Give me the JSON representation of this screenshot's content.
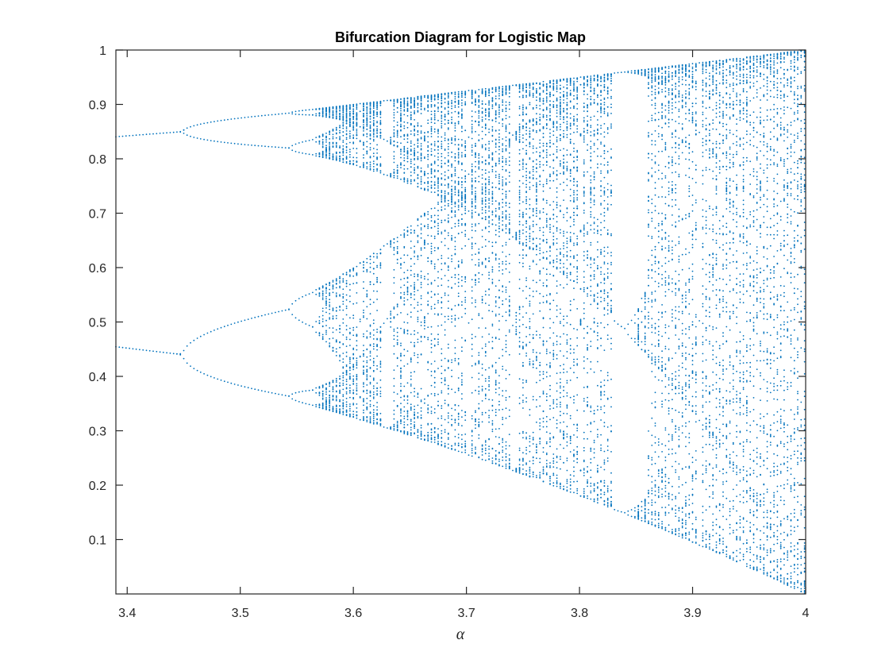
{
  "chart_data": {
    "type": "scatter",
    "title": "Bifurcation Diagram for Logistic Map",
    "xlabel": "α",
    "ylabel": "",
    "xlim": [
      3.39,
      4.0
    ],
    "ylim": [
      0.0,
      1.0
    ],
    "xticks": [
      3.4,
      3.5,
      3.6,
      3.7,
      3.8,
      3.9,
      4.0
    ],
    "xtick_labels": [
      "3.4",
      "3.5",
      "3.6",
      "3.7",
      "3.8",
      "3.9",
      "4"
    ],
    "yticks": [
      0.1,
      0.2,
      0.3,
      0.4,
      0.5,
      0.6,
      0.7,
      0.8,
      0.9,
      1.0
    ],
    "ytick_labels": [
      "0.1",
      "0.2",
      "0.3",
      "0.4",
      "0.5",
      "0.6",
      "0.7",
      "0.8",
      "0.9",
      "1"
    ],
    "grid": false,
    "marker_color": "#0072BD",
    "series": [
      {
        "map": "x_{n+1} = α x_n (1 - x_n)",
        "alpha_range": [
          3.39,
          4.0
        ],
        "alpha_step": 0.003,
        "x0": 0.5,
        "transient_iterations": 400,
        "plotted_iterations": 90
      }
    ]
  }
}
